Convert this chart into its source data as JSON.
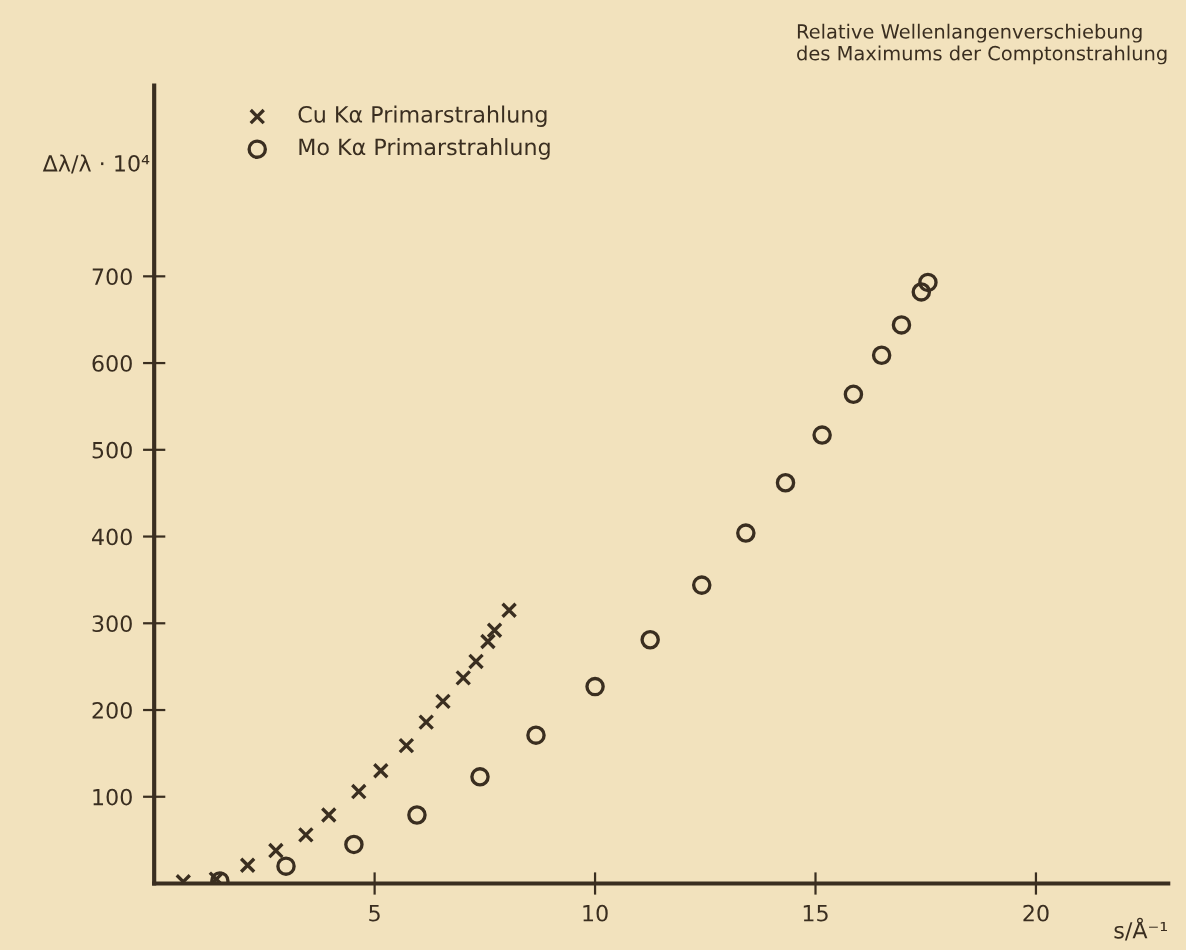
{
  "chart_data": {
    "type": "scatter",
    "title": "Relative Wellenlangenverschiebung\ndes Maximums der Comptonstrahlung",
    "xlabel": "s/Å⁻¹",
    "ylabel": "Δλ/λ · 10⁴",
    "xlim": [
      0,
      23
    ],
    "ylim": [
      0,
      920
    ],
    "xticks": [
      5,
      10,
      15,
      20
    ],
    "yticks": [
      100,
      200,
      300,
      400,
      500,
      600,
      700
    ],
    "grid": false,
    "legend": "top left",
    "series": [
      {
        "name": "Cu Kα Primarstrahlung",
        "color": "#3a2e20",
        "marker": "cross",
        "x": [
          0.66,
          1.41,
          2.12,
          2.76,
          3.44,
          3.96,
          4.64,
          5.14,
          5.72,
          6.17,
          6.55,
          7.01,
          7.3,
          7.57,
          7.72,
          8.05
        ],
        "values": [
          2,
          5,
          21,
          38,
          56,
          79,
          106,
          130,
          159,
          186,
          210,
          237,
          256,
          279,
          292,
          315
        ]
      },
      {
        "name": "Mo Kα Primarstrahlung",
        "color": "#3a2e20",
        "marker": "circle",
        "x": [
          1.49,
          2.99,
          4.53,
          5.96,
          7.39,
          8.66,
          10.0,
          11.25,
          12.42,
          13.42,
          14.32,
          15.15,
          15.86,
          16.5,
          16.95,
          17.4,
          17.55
        ],
        "values": [
          3,
          20,
          45,
          79,
          123,
          171,
          227,
          281,
          344,
          404,
          462,
          517,
          564,
          609,
          644,
          682,
          693
        ]
      }
    ]
  }
}
